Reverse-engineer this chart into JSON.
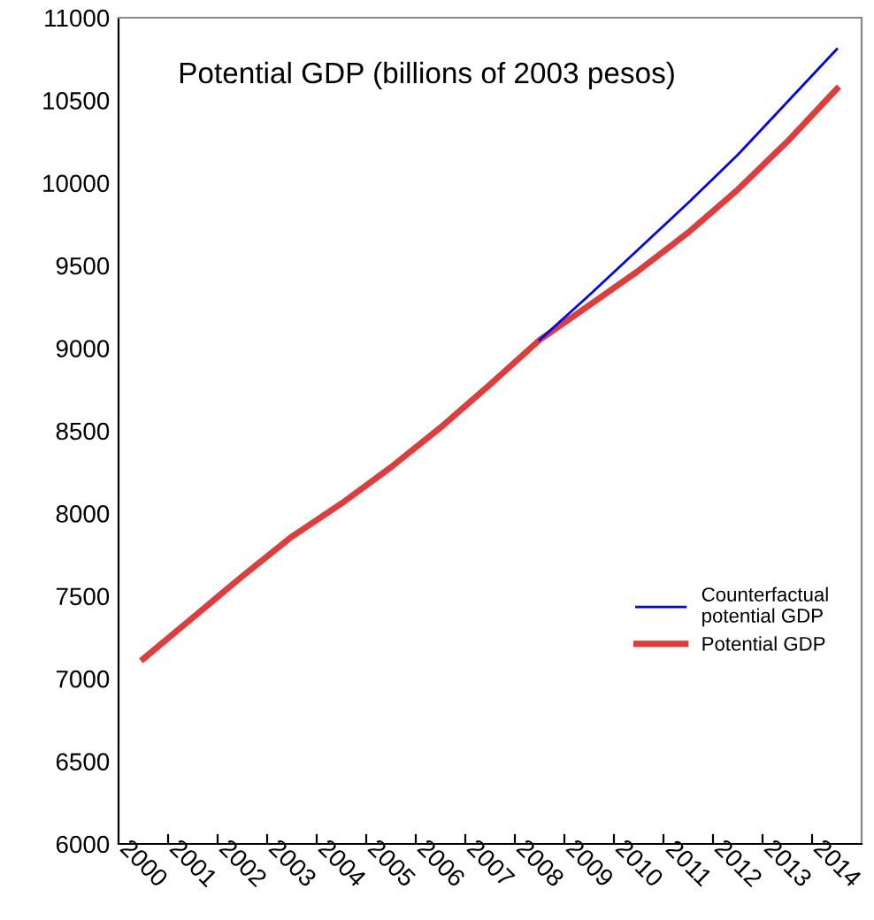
{
  "chart_data": {
    "type": "line",
    "title": "Potential GDP (billions of 2003 pesos)",
    "categories": [
      "2000",
      "2001",
      "2002",
      "2003",
      "2004",
      "2005",
      "2006",
      "2007",
      "2008",
      "2009",
      "2010",
      "2011",
      "2012",
      "2013",
      "2014"
    ],
    "series": [
      {
        "name": "Counterfactual\npotential GDP",
        "color": "#0000ff",
        "values": [
          null,
          null,
          null,
          null,
          null,
          null,
          null,
          null,
          9050,
          9320,
          9600,
          9880,
          10170,
          10490,
          10810
        ]
      },
      {
        "name": "Potential GDP",
        "color": "#e03c3c",
        "values": [
          7120,
          7370,
          7620,
          7860,
          8060,
          8280,
          8520,
          8780,
          9050,
          9260,
          9470,
          9700,
          9960,
          10250,
          10570
        ]
      }
    ],
    "ylim": [
      6000,
      11000
    ],
    "yticks": [
      6000,
      6500,
      7000,
      7500,
      8000,
      8500,
      9000,
      9500,
      10000,
      10500,
      11000
    ],
    "legend": "center right",
    "grid": false,
    "marker": "none",
    "line_style": "solid"
  }
}
